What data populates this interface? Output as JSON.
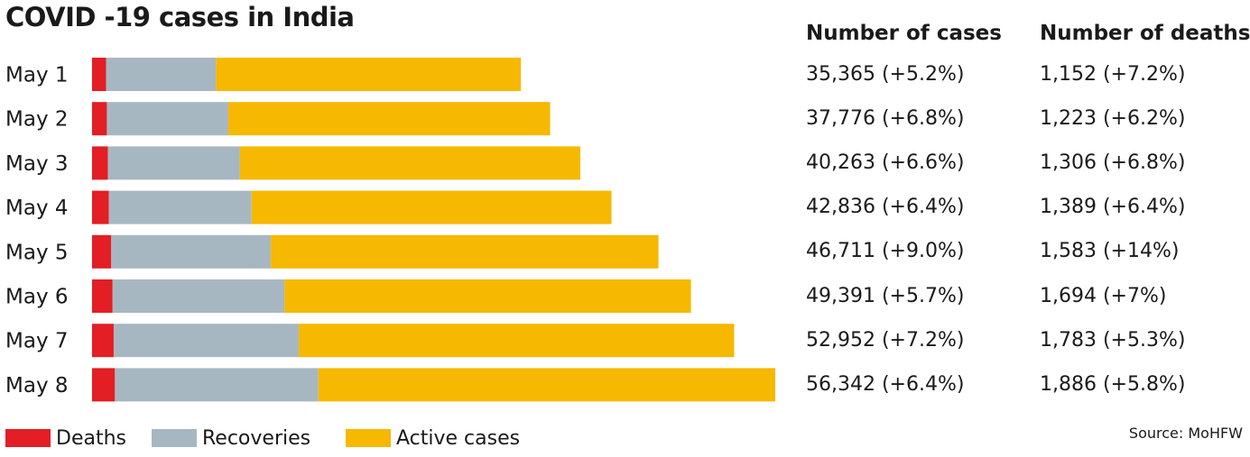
{
  "title": "COVID -19 cases in India",
  "columns": {
    "cases_header": "Number of cases",
    "deaths_header": "Number of deaths"
  },
  "table": [
    {
      "cases_text": "35,365 (+5.2%)",
      "deaths_text": "1,152 (+7.2%)"
    },
    {
      "cases_text": "37,776 (+6.8%)",
      "deaths_text": "1,223 (+6.2%)"
    },
    {
      "cases_text": "40,263 (+6.6%)",
      "deaths_text": "1,306 (+6.8%)"
    },
    {
      "cases_text": "42,836 (+6.4%)",
      "deaths_text": "1,389 (+6.4%)"
    },
    {
      "cases_text": "46,711 (+9.0%)",
      "deaths_text": "1,583 (+14%)"
    },
    {
      "cases_text": "49,391 (+5.7%)",
      "deaths_text": "1,694 (+7%)"
    },
    {
      "cases_text": "52,952 (+7.2%)",
      "deaths_text": "1,783 (+5.3%)"
    },
    {
      "cases_text": "56,342 (+6.4%)",
      "deaths_text": "1,886 (+5.8%)"
    }
  ],
  "legend": {
    "deaths": "Deaths",
    "recoveries": "Recoveries",
    "active": "Active cases"
  },
  "source": "Source: MoHFW",
  "colors": {
    "deaths": "#e31e24",
    "recoveries": "#a7b7c2",
    "active": "#f6b800"
  },
  "chart_data": {
    "type": "bar",
    "orientation": "horizontal",
    "stacked": true,
    "categories": [
      "May 1",
      "May 2",
      "May 3",
      "May 4",
      "May 5",
      "May 6",
      "May 7",
      "May 8"
    ],
    "series": [
      {
        "name": "Deaths",
        "values": [
          1152,
          1223,
          1306,
          1389,
          1583,
          1694,
          1783,
          1886
        ]
      },
      {
        "name": "Recoveries",
        "values": [
          9065,
          10011,
          10887,
          11763,
          13161,
          14183,
          15266,
          16777
        ]
      },
      {
        "name": "Active cases",
        "values": [
          25148,
          26542,
          28070,
          29684,
          31967,
          33514,
          35903,
          37679
        ]
      }
    ],
    "totals": [
      35365,
      37776,
      40263,
      42836,
      46711,
      49391,
      52952,
      56342
    ],
    "xlim": [
      0,
      56342
    ],
    "grid": false,
    "legend_position": "bottom-left"
  }
}
